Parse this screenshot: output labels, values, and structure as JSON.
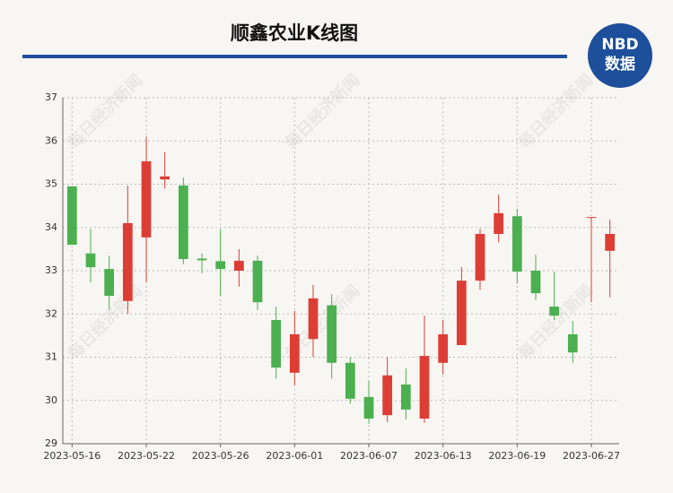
{
  "chart_data": {
    "type": "candlestick",
    "title": "顺鑫农业K线图",
    "categories": [
      "2023-05-16",
      null,
      null,
      null,
      "2023-05-22",
      null,
      null,
      null,
      "2023-05-26",
      null,
      null,
      null,
      "2023-06-01",
      null,
      null,
      null,
      "2023-06-07",
      null,
      null,
      null,
      "2023-06-13",
      null,
      null,
      null,
      "2023-06-19",
      null,
      null,
      null,
      "2023-06-27",
      null
    ],
    "open": [
      34.95,
      33.4,
      33.04,
      32.3,
      33.77,
      35.11,
      34.97,
      33.28,
      33.22,
      33.0,
      33.23,
      31.86,
      30.64,
      31.42,
      32.2,
      30.87,
      30.08,
      29.66,
      30.37,
      29.58,
      30.87,
      31.28,
      32.77,
      33.85,
      34.26,
      33.0,
      32.17,
      31.53,
      34.22,
      33.46
    ],
    "high": [
      34.95,
      33.97,
      33.35,
      34.97,
      36.1,
      35.74,
      35.15,
      33.4,
      33.95,
      33.5,
      33.35,
      32.17,
      32.07,
      32.67,
      32.46,
      31.0,
      30.45,
      31.0,
      30.74,
      31.96,
      31.86,
      33.08,
      33.97,
      34.76,
      34.43,
      33.37,
      32.98,
      31.84,
      34.24,
      34.18
    ],
    "low": [
      33.6,
      32.73,
      32.1,
      32.0,
      32.73,
      34.9,
      33.15,
      32.94,
      32.42,
      32.63,
      32.09,
      30.5,
      30.35,
      31.0,
      30.5,
      29.93,
      29.46,
      29.5,
      29.56,
      29.48,
      30.6,
      31.28,
      32.56,
      33.66,
      32.71,
      32.32,
      31.86,
      30.87,
      32.27,
      32.38
    ],
    "close": [
      33.6,
      33.08,
      32.42,
      34.1,
      35.53,
      35.18,
      33.27,
      33.24,
      33.04,
      33.23,
      32.27,
      30.76,
      31.53,
      32.36,
      30.87,
      30.04,
      29.58,
      30.58,
      29.79,
      31.03,
      31.53,
      32.77,
      33.85,
      34.33,
      32.98,
      32.48,
      31.96,
      31.11,
      34.24,
      33.85
    ],
    "up_color": "#dc3e36",
    "down_color": "#4caf50",
    "ylim": [
      29,
      37
    ],
    "yticks": [
      29,
      30,
      31,
      32,
      33,
      34,
      35,
      36,
      37
    ],
    "grid": true
  },
  "logo": {
    "brand": "NBD",
    "label": "数据"
  },
  "watermark": "每日经济新闻"
}
